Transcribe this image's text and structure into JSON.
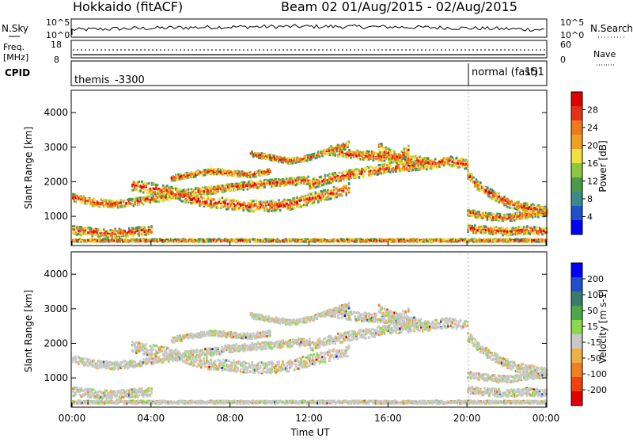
{
  "header": {
    "title": "Hokkaido (fitACF)",
    "beam_and_dates": "Beam 02  01/Aug/2015 - 02/Aug/2015"
  },
  "summary_panels": {
    "nsky_label": "N.Sky",
    "nsearch_label": "N.Search",
    "nsky_ticks": [
      "10^5",
      "10^0"
    ],
    "nsearch_ticks": [
      "10^5",
      "10^0"
    ],
    "freq_label_line1": "Freq.",
    "freq_label_line2": "[MHz]",
    "freq_ticks": [
      "18",
      "8"
    ],
    "nave_label": "Nave",
    "nave_ticks": [
      "60",
      "0"
    ],
    "cpid_label": "CPID",
    "cpid_segments": [
      {
        "name": "themis",
        "id": "-3300",
        "start_hour": 0,
        "end_hour": 20.0
      },
      {
        "name": "normal (fast)",
        "id": "151",
        "start_hour": 20.0,
        "end_hour": 24.0
      }
    ]
  },
  "chart_data": [
    {
      "type": "heatmap",
      "panel": "power",
      "ylabel": "Slant Range [km]",
      "y_ticks": [
        1000,
        2000,
        3000,
        4000
      ],
      "ylim": [
        200,
        4600
      ],
      "xlim_hours": [
        0,
        24
      ],
      "colorbar": {
        "label": "Power [dB]",
        "tick_labels": [
          "4",
          "8",
          "12",
          "16",
          "20",
          "24",
          "28"
        ],
        "colors": [
          "#0000ff",
          "#2050c8",
          "#3a8a8a",
          "#4a9a4a",
          "#8cc83c",
          "#f0e040",
          "#f0a020",
          "#ee7a1a",
          "#e53018",
          "#e00000"
        ]
      },
      "bands": [
        {
          "x": [
            0,
            1,
            2,
            3,
            4,
            5,
            6,
            7,
            8,
            9,
            10,
            11,
            12
          ],
          "y": [
            1550,
            1400,
            1350,
            1400,
            1500,
            1600,
            1700,
            1750,
            1850,
            1900,
            1950,
            2000,
            2050
          ],
          "width": 220
        },
        {
          "x": [
            3,
            4,
            5,
            6,
            7,
            8,
            9,
            10,
            11,
            12,
            13,
            14
          ],
          "y": [
            1900,
            1800,
            1700,
            1500,
            1400,
            1350,
            1300,
            1300,
            1350,
            1500,
            1650,
            1800
          ],
          "width": 320
        },
        {
          "x": [
            12,
            13,
            14,
            15,
            16,
            17,
            18,
            19,
            20
          ],
          "y": [
            1900,
            2100,
            2200,
            2300,
            2400,
            2450,
            2500,
            2600,
            2500
          ],
          "width": 280
        },
        {
          "x": [
            13,
            14,
            15,
            16,
            17,
            18
          ],
          "y": [
            2900,
            2800,
            2750,
            2700,
            2650,
            2550
          ],
          "width": 260
        },
        {
          "x": [
            15.5,
            16,
            16.5,
            17
          ],
          "y": [
            3000,
            2800,
            2700,
            2900
          ],
          "width": 300
        },
        {
          "x": [
            20.0,
            20.5,
            21,
            21.5,
            22,
            22.5,
            23,
            23.5,
            24
          ],
          "y": [
            2200,
            1900,
            1700,
            1550,
            1400,
            1300,
            1250,
            1200,
            1150
          ],
          "width": 260
        },
        {
          "x": [
            0,
            1,
            2,
            3,
            4
          ],
          "y": [
            600,
            550,
            500,
            550,
            600
          ],
          "width": 250
        },
        {
          "x": [
            20,
            21,
            22,
            23,
            24
          ],
          "y": [
            1100,
            1000,
            950,
            1050,
            1100
          ],
          "width": 200
        },
        {
          "x": [
            20,
            21,
            22,
            23,
            24
          ],
          "y": [
            650,
            600,
            550,
            600,
            550
          ],
          "width": 220
        },
        {
          "x": [
            9,
            10,
            11,
            12,
            13,
            14
          ],
          "y": [
            2800,
            2700,
            2600,
            2700,
            2900,
            3100
          ],
          "width": 160
        },
        {
          "x": [
            5,
            6,
            7,
            8,
            9,
            10
          ],
          "y": [
            2100,
            2200,
            2300,
            2250,
            2200,
            2300
          ],
          "width": 160
        },
        {
          "x": [
            0,
            24
          ],
          "y": [
            300,
            300
          ],
          "width": 80
        }
      ]
    },
    {
      "type": "heatmap",
      "panel": "velocity",
      "ylabel": "Slant Range [km]",
      "y_ticks": [
        1000,
        2000,
        3000,
        4000
      ],
      "ylim": [
        200,
        4600
      ],
      "xlim_hours": [
        0,
        24
      ],
      "xlabel": "Time UT",
      "x_ticks": [
        "00:00",
        "04:00",
        "08:00",
        "12:00",
        "16:00",
        "20:00",
        "00:00"
      ],
      "colorbar": {
        "label": "Velocity [m s-1]",
        "tick_labels": [
          "-200",
          "-100",
          "-50",
          "-15",
          "15",
          "50",
          "100",
          "200"
        ],
        "colors": [
          "#e00000",
          "#f04010",
          "#f08020",
          "#f0b040",
          "#c8c8c8",
          "#8cd84c",
          "#4aa848",
          "#3a7a6a",
          "#2050c8",
          "#0000ff"
        ]
      }
    }
  ]
}
